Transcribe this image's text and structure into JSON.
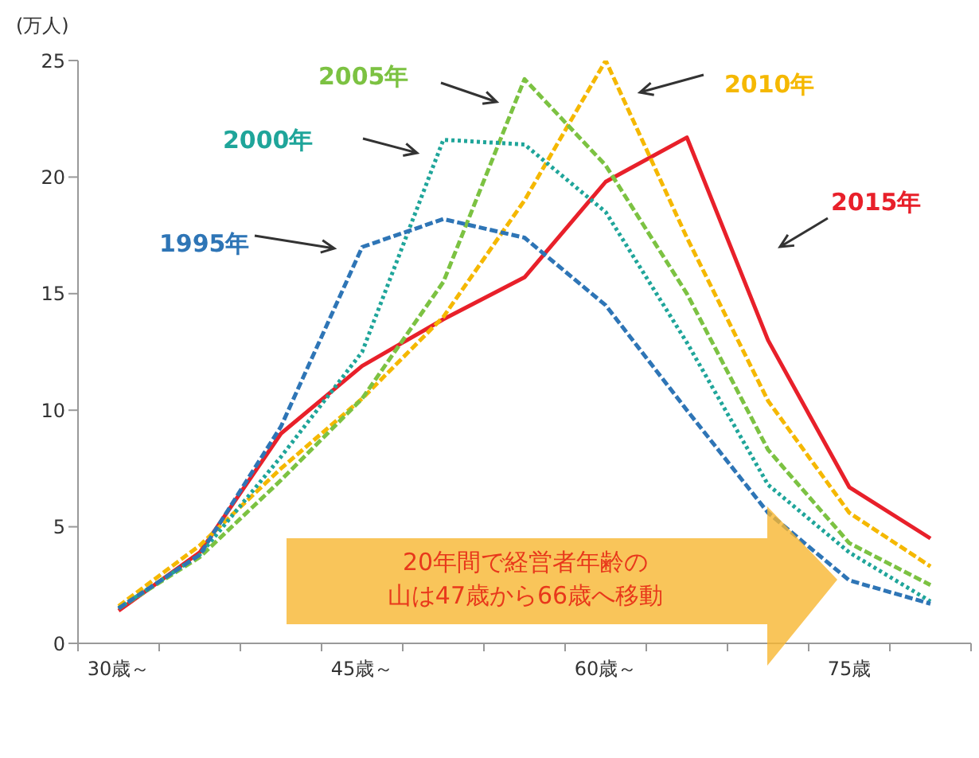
{
  "chart_data": {
    "type": "line",
    "ylabel": "(万人)",
    "categories": [
      "30歳～",
      null,
      null,
      "45歳～",
      null,
      null,
      "60歳～",
      null,
      null,
      "75歳",
      null
    ],
    "series": [
      {
        "name": "1995年",
        "color": "#2e75b6",
        "line_style": "dashed",
        "values": [
          1.5,
          3.8,
          9.3,
          17.0,
          18.2,
          17.4,
          14.5,
          10.0,
          5.6,
          2.7,
          1.7
        ]
      },
      {
        "name": "2000年",
        "color": "#1fa59a",
        "line_style": "dotted",
        "values": [
          1.5,
          3.8,
          8.0,
          12.5,
          21.6,
          21.4,
          18.5,
          12.9,
          6.8,
          3.9,
          1.8
        ]
      },
      {
        "name": "2005年",
        "color": "#7cc242",
        "line_style": "dashed",
        "values": [
          1.5,
          3.7,
          7.0,
          10.5,
          15.5,
          24.2,
          20.5,
          15.0,
          8.3,
          4.3,
          2.5
        ]
      },
      {
        "name": "2010年",
        "color": "#f5b800",
        "line_style": "dashed",
        "values": [
          1.6,
          4.2,
          7.5,
          10.5,
          14.0,
          19.0,
          25.0,
          17.4,
          10.4,
          5.6,
          3.3
        ]
      },
      {
        "name": "2015年",
        "color": "#e8202a",
        "line_style": "solid",
        "values": [
          1.4,
          3.9,
          9.0,
          11.9,
          13.9,
          15.7,
          19.8,
          21.7,
          13.0,
          6.7,
          4.5
        ]
      }
    ],
    "ylim": [
      0,
      25
    ],
    "yticks": [
      0,
      5,
      10,
      15,
      20,
      25
    ],
    "legend": false,
    "marker": "none",
    "annotations": [
      "20年間で経営者年齢の山は47歳から66歳へ移動"
    ]
  }
}
